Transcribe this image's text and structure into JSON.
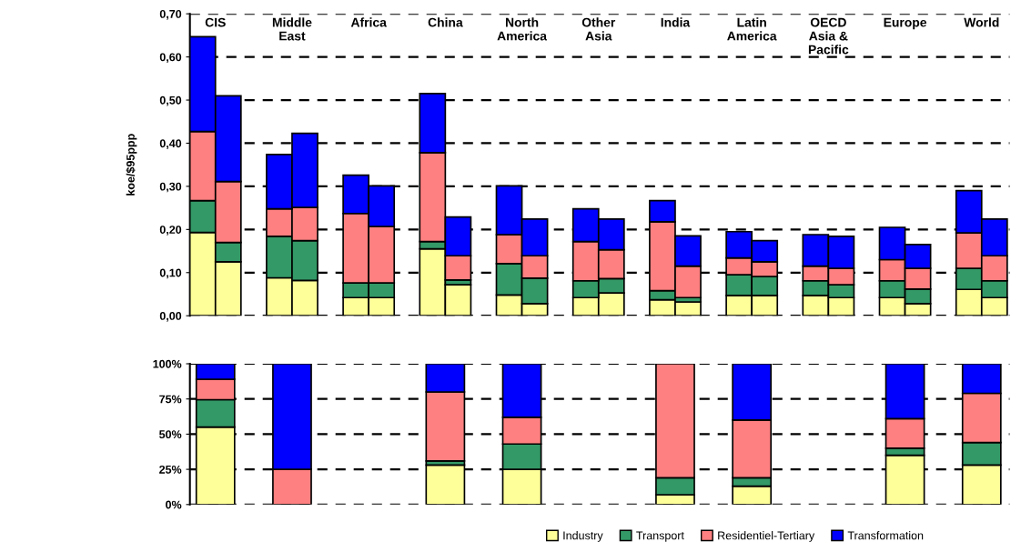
{
  "chart_data": [
    {
      "type": "bar",
      "stacked": true,
      "ylabel": "koe/$95ppp",
      "grid": "y",
      "categories": [
        "CIS",
        null,
        null,
        "Middle East",
        null,
        null,
        "Africa",
        null,
        null,
        "China",
        null,
        null,
        "North America",
        null,
        null,
        "Other Asia",
        null,
        null,
        "India",
        null,
        null,
        "Latin America",
        null,
        null,
        "OECD Asia & Pacific",
        null,
        null,
        "Europe",
        null,
        null,
        "World",
        null
      ],
      "ylim": [
        0,
        0.7
      ],
      "yticks": [
        {
          "value": 0,
          "label": "0,00"
        },
        {
          "value": 0.1,
          "label": "0,10"
        },
        {
          "value": 0.2,
          "label": "0,20"
        },
        {
          "value": 0.3,
          "label": "0,30"
        },
        {
          "value": 0.4,
          "label": "0,40"
        },
        {
          "value": 0.5,
          "label": "0,50"
        },
        {
          "value": 0.6,
          "label": "0,60"
        },
        {
          "value": 0.7,
          "label": "0,70"
        }
      ],
      "series": [
        {
          "color": "#ffff99",
          "values": [
            0.193,
            0.125,
            null,
            0.088,
            0.082,
            null,
            0.042,
            0.042,
            null,
            0.155,
            0.072,
            null,
            0.048,
            0.028,
            null,
            0.042,
            0.053,
            null,
            0.037,
            0.032,
            null,
            0.047,
            0.047,
            null,
            0.047,
            0.042,
            null,
            0.042,
            0.028,
            null,
            0.061,
            0.042
          ]
        },
        {
          "color": "#339966",
          "values": [
            0.074,
            0.045,
            null,
            0.096,
            0.092,
            null,
            0.034,
            0.034,
            null,
            0.017,
            0.011,
            null,
            0.073,
            0.059,
            null,
            0.039,
            0.033,
            null,
            0.021,
            0.01,
            null,
            0.048,
            0.044,
            null,
            0.034,
            0.03,
            null,
            0.039,
            0.034,
            null,
            0.049,
            0.039
          ]
        },
        {
          "color": "#ff8080",
          "values": [
            0.16,
            0.141,
            null,
            0.064,
            0.077,
            null,
            0.161,
            0.131,
            null,
            0.206,
            0.056,
            null,
            0.067,
            0.052,
            null,
            0.091,
            0.067,
            null,
            0.16,
            0.073,
            null,
            0.039,
            0.034,
            null,
            0.034,
            0.038,
            null,
            0.049,
            0.048,
            null,
            0.082,
            0.058
          ]
        },
        {
          "color": "#0000ff",
          "values": [
            0.22,
            0.199,
            null,
            0.126,
            0.172,
            null,
            0.089,
            0.094,
            null,
            0.137,
            0.09,
            null,
            0.113,
            0.085,
            null,
            0.076,
            0.071,
            null,
            0.049,
            0.07,
            null,
            0.061,
            0.049,
            null,
            0.073,
            0.074,
            null,
            0.075,
            0.055,
            null,
            0.098,
            0.085
          ]
        }
      ]
    },
    {
      "type": "bar",
      "stacked": true,
      "grid": "y",
      "legend": "bottom",
      "categories": [
        null,
        null,
        null,
        null,
        null,
        null,
        null,
        null,
        null,
        null,
        null
      ],
      "ylim": [
        0,
        100
      ],
      "yticks": [
        {
          "value": 0,
          "label": "0%"
        },
        {
          "value": 25,
          "label": "25%"
        },
        {
          "value": 50,
          "label": "50%"
        },
        {
          "value": 75,
          "label": "75%"
        },
        {
          "value": 100,
          "label": "100%"
        }
      ],
      "series": [
        {
          "name": "Industry",
          "color": "#ffff99",
          "values": [
            55,
            null,
            null,
            28,
            25,
            null,
            7,
            13,
            null,
            35,
            28
          ]
        },
        {
          "name": "Transport",
          "color": "#339966",
          "values": [
            19.5,
            null,
            null,
            3,
            18,
            null,
            12,
            6,
            null,
            5,
            16
          ]
        },
        {
          "name": "Residentiel-Tertiary",
          "color": "#ff8080",
          "values": [
            14.5,
            25,
            null,
            49,
            19,
            null,
            81,
            41,
            null,
            21,
            35
          ]
        },
        {
          "name": "Transformation",
          "color": "#0000ff",
          "values": [
            11,
            75,
            null,
            20,
            38,
            null,
            null,
            40,
            null,
            39,
            21
          ]
        }
      ]
    }
  ]
}
